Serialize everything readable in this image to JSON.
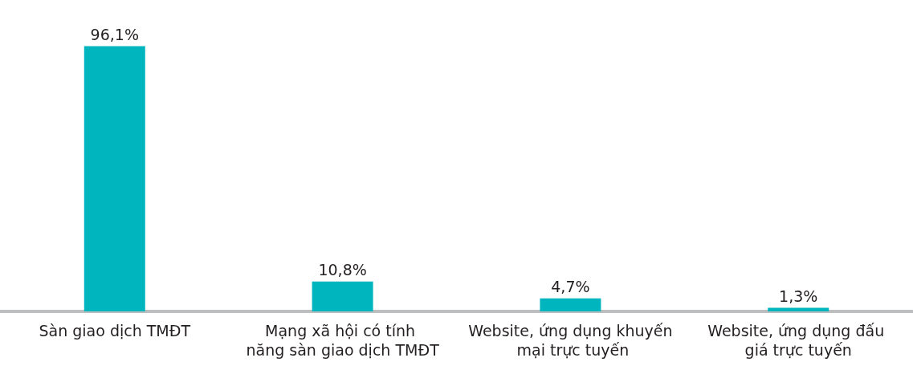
{
  "chart_data": {
    "type": "bar",
    "categories": [
      "Sàn giao dịch TMĐT",
      "Mạng xã hội có tính năng sàn giao dịch TMĐT",
      "Website, ứng dụng khuyến mại trực tuyến",
      "Website, ứng dụng đấu giá trực tuyến"
    ],
    "values": [
      96.1,
      10.8,
      4.7,
      1.3
    ],
    "value_labels": [
      "96,1%",
      "10,8%",
      "4,7%",
      "1,3%"
    ],
    "color": "#00b5bd"
  }
}
